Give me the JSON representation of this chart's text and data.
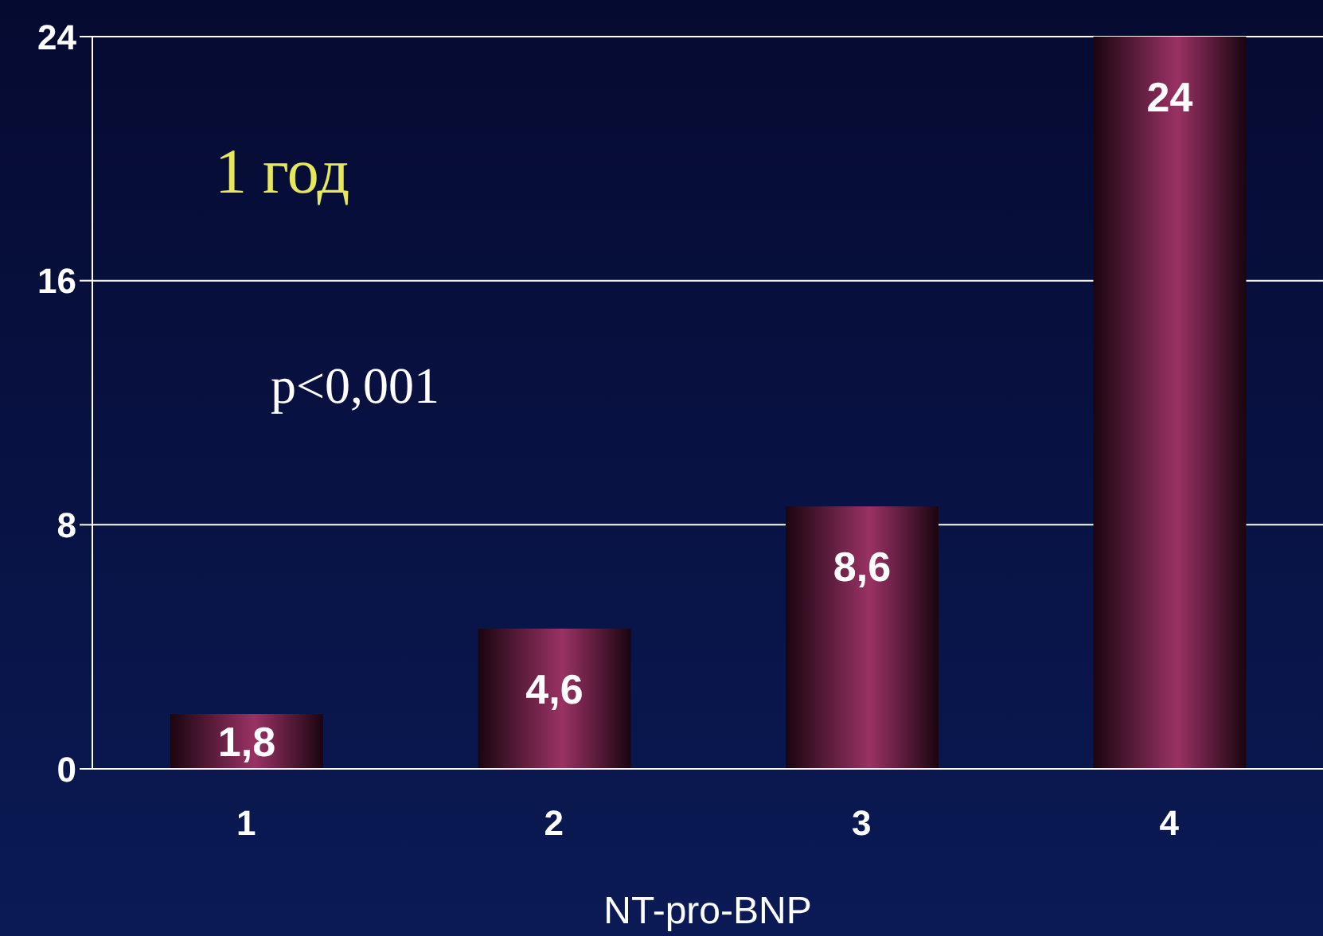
{
  "chart_data": {
    "type": "bar",
    "categories": [
      "1",
      "2",
      "3",
      "4"
    ],
    "values": [
      1.8,
      4.6,
      8.6,
      24
    ],
    "value_labels": [
      "1,8",
      "4,6",
      "8,6",
      "24"
    ],
    "color": "#9a3264",
    "xlabel": "NT-pro-BNP",
    "ylim": [
      0,
      24
    ],
    "yticks": [
      0,
      8,
      16,
      24
    ],
    "grid": "y",
    "annotations": [
      "1 год",
      "p<0,001"
    ]
  }
}
